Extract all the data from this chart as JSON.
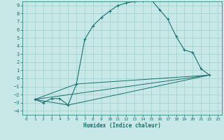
{
  "xlabel": "Humidex (Indice chaleur)",
  "bg_color": "#c8e8e8",
  "line_color": "#1a7070",
  "grid_color": "#9fcfcf",
  "xlim": [
    -0.5,
    23.5
  ],
  "ylim": [
    -4.5,
    9.5
  ],
  "xticks": [
    0,
    1,
    2,
    3,
    4,
    5,
    6,
    7,
    8,
    9,
    10,
    11,
    12,
    13,
    14,
    15,
    16,
    17,
    18,
    19,
    20,
    21,
    22,
    23
  ],
  "yticks": [
    -4,
    -3,
    -2,
    -1,
    0,
    1,
    2,
    3,
    4,
    5,
    6,
    7,
    8,
    9
  ],
  "curve_x": [
    1,
    2,
    3,
    4,
    5,
    6,
    7,
    8,
    9,
    10,
    11,
    12,
    13,
    14,
    15,
    16,
    17,
    18,
    19,
    20,
    21,
    22
  ],
  "curve_y": [
    -2.6,
    -3.0,
    -2.5,
    -2.5,
    -3.3,
    -0.7,
    4.8,
    6.5,
    7.5,
    8.3,
    9.0,
    9.3,
    9.5,
    9.6,
    9.7,
    8.5,
    7.3,
    5.2,
    3.5,
    3.2,
    1.2,
    0.4
  ],
  "line2_x": [
    1,
    6,
    22
  ],
  "line2_y": [
    -2.6,
    -0.7,
    0.4
  ],
  "line3_x": [
    1,
    22
  ],
  "line3_y": [
    -2.6,
    0.4
  ],
  "line4_x": [
    1,
    5,
    22
  ],
  "line4_y": [
    -2.6,
    -3.3,
    0.4
  ]
}
